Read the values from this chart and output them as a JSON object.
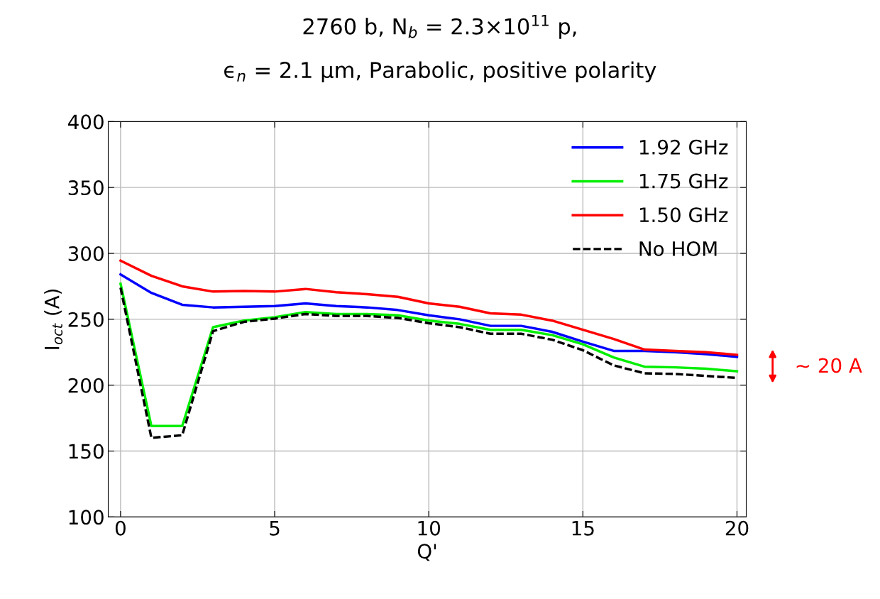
{
  "chart_data": {
    "type": "line",
    "title": "2760 b, N$_{b}$ = 2.3×10$^{11}$ p,",
    "subtitle": "ϵ$_{n}$ = 2.1 μm, Parabolic, positive polarity",
    "xlabel": "Q'",
    "ylabel": "I$_{oct}$ (A)",
    "x": [
      0,
      1,
      2,
      3,
      4,
      5,
      6,
      7,
      8,
      9,
      10,
      11,
      12,
      13,
      14,
      15,
      16,
      17,
      18,
      19,
      20
    ],
    "series": [
      {
        "name": "1.92 GHz",
        "color": "#0000ff",
        "line_style": "solid",
        "values": [
          284,
          270,
          261,
          259,
          259.5,
          260,
          262,
          260,
          259,
          257,
          253,
          250,
          245,
          245,
          240.5,
          233,
          226,
          226,
          225,
          223.5,
          221.5
        ]
      },
      {
        "name": "1.75 GHz",
        "color": "#00ee00",
        "line_style": "solid",
        "values": [
          277,
          169,
          169,
          244,
          249,
          251.5,
          255.5,
          254,
          254,
          253,
          249,
          246.5,
          242,
          242,
          238,
          231,
          221,
          214,
          213.5,
          212.5,
          210.5
        ]
      },
      {
        "name": "1.50 GHz",
        "color": "#ff0000",
        "line_style": "solid",
        "values": [
          294.5,
          283,
          275,
          271,
          271.5,
          271,
          273,
          270.5,
          269,
          267,
          262,
          259.5,
          254.5,
          253.5,
          249,
          242,
          235,
          227,
          226,
          225,
          223
        ]
      },
      {
        "name": "No HOM",
        "color": "#000000",
        "line_style": "dashed",
        "values": [
          274,
          160,
          162,
          241,
          248,
          250.5,
          254,
          252.5,
          252.5,
          251,
          247,
          244,
          239,
          239,
          234.5,
          226.5,
          215,
          209,
          208.5,
          207,
          205.5
        ]
      }
    ],
    "xlim": [
      -0.4,
      20.3
    ],
    "xticks": [
      0,
      5,
      10,
      15,
      20
    ],
    "ylim": [
      100,
      400
    ],
    "yticks": [
      100,
      150,
      200,
      250,
      300,
      350,
      400
    ],
    "grid": true,
    "legend": "top right",
    "marker": "none",
    "annotations": [
      "~ 20 A"
    ]
  }
}
